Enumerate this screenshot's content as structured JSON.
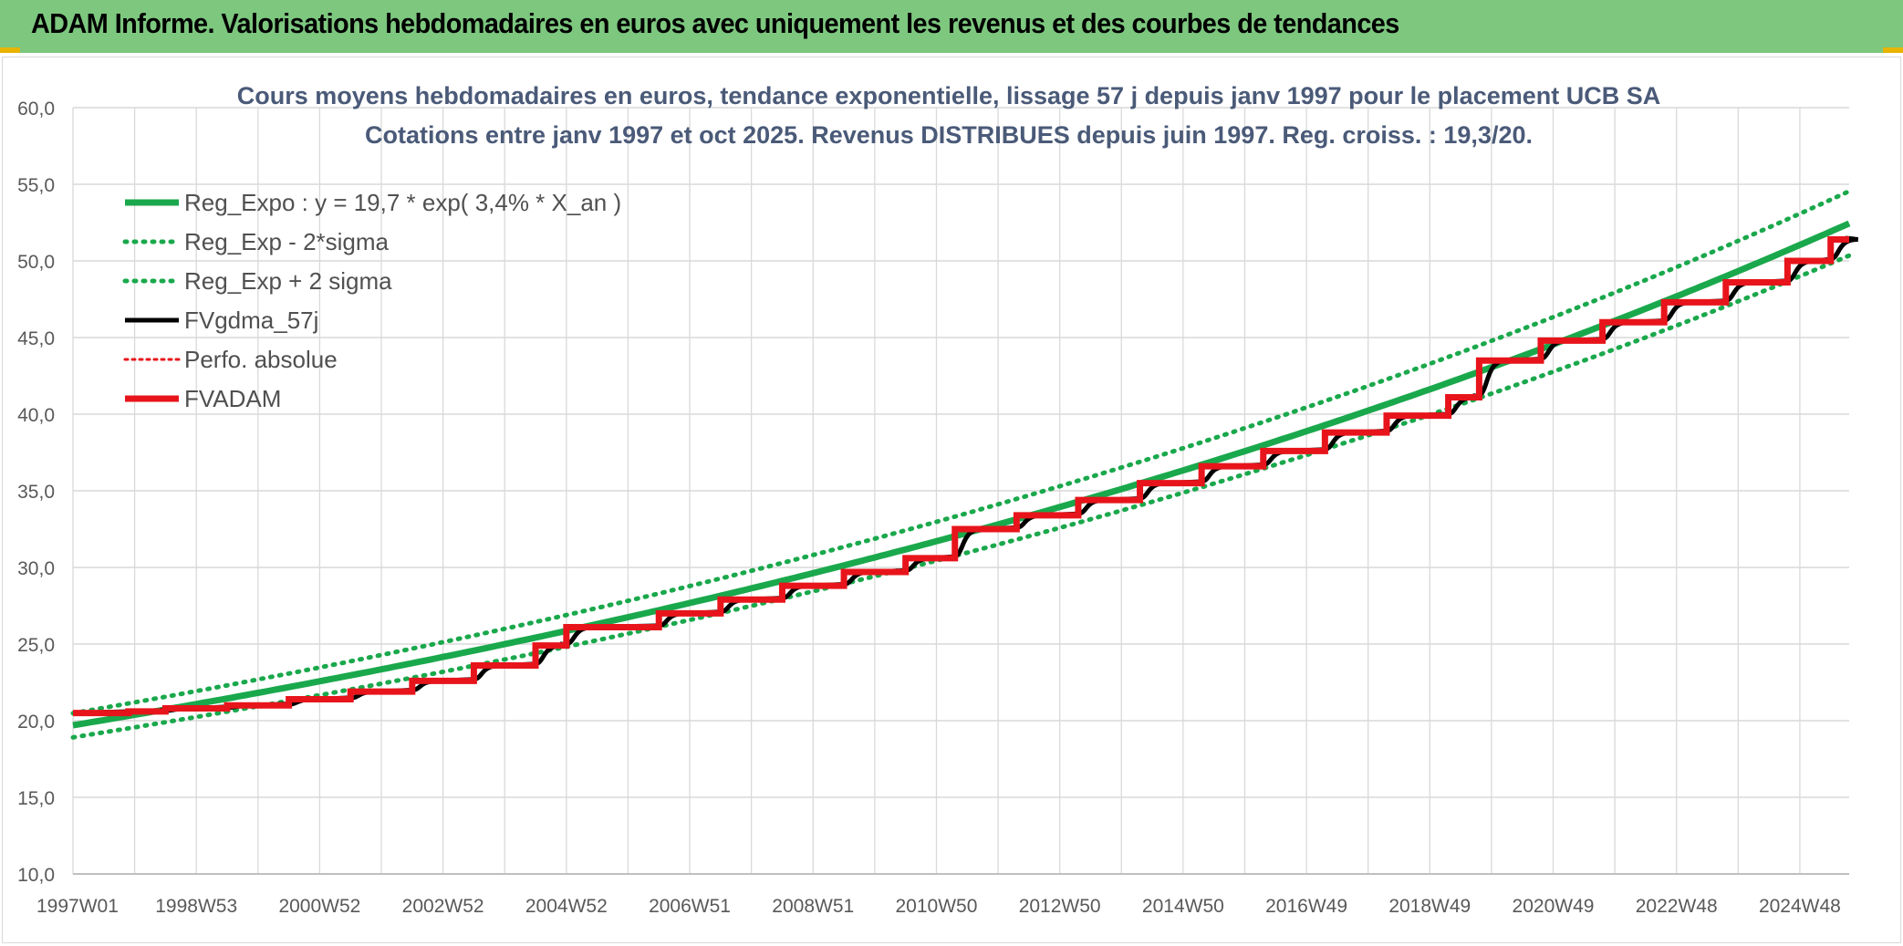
{
  "header": {
    "title": "ADAM Informe. Valorisations hebdomadaires en euros avec uniquement les revenus et des courbes de tendances"
  },
  "colors": {
    "header_bg": "#7dc77f",
    "trend": "#1aa84c",
    "price": "#000000",
    "adam": "#e8141b",
    "grid": "#d9d9d9"
  },
  "chart_data": {
    "type": "line",
    "title_line1": "Cours moyens hebdomadaires en euros, tendance exponentielle, lissage 57 j depuis janv 1997 pour le placement UCB SA",
    "title_line2": "Cotations entre janv 1997 et oct 2025. Revenus DISTRIBUES depuis juin 1997. Reg. croiss. : 19,3/20.",
    "xlabel": "",
    "ylabel": "",
    "ylim": [
      10,
      60
    ],
    "y_ticks": [
      "60,0",
      "55,0",
      "50,0",
      "45,0",
      "40,0",
      "35,0",
      "30,0",
      "25,0",
      "20,0",
      "15,0",
      "10,0"
    ],
    "x_range_years": [
      1997.0,
      2025.8
    ],
    "x_ticks": [
      {
        "label": "1997W01",
        "year": 1997.0
      },
      {
        "label": "1998W53",
        "year": 1999.0
      },
      {
        "label": "2000W52",
        "year": 2001.0
      },
      {
        "label": "2002W52",
        "year": 2003.0
      },
      {
        "label": "2004W52",
        "year": 2005.0
      },
      {
        "label": "2006W51",
        "year": 2007.0
      },
      {
        "label": "2008W51",
        "year": 2009.0
      },
      {
        "label": "2010W50",
        "year": 2011.0
      },
      {
        "label": "2012W50",
        "year": 2013.0
      },
      {
        "label": "2014W50",
        "year": 2015.0
      },
      {
        "label": "2016W49",
        "year": 2017.0
      },
      {
        "label": "2018W49",
        "year": 2019.0
      },
      {
        "label": "2020W49",
        "year": 2021.0
      },
      {
        "label": "2022W48",
        "year": 2023.0
      },
      {
        "label": "2024W48",
        "year": 2025.0
      }
    ],
    "grid": true,
    "legend_position": "top-left",
    "regression": {
      "a": 19.7,
      "rate": 0.034,
      "sigma_factor": 0.04
    },
    "series": [
      {
        "name": "Reg_Expo : y = 19,7 * exp( 3,4% *  X_an )",
        "style": "solid-thick",
        "color": "#1aa84c"
      },
      {
        "name": "Reg_Exp - 2*sigma",
        "style": "dotted",
        "color": "#1aa84c"
      },
      {
        "name": "Reg_Exp + 2 sigma",
        "style": "dotted",
        "color": "#1aa84c"
      },
      {
        "name": "FVgdma_57j",
        "style": "solid",
        "color": "#000000"
      },
      {
        "name": "Perfo. absolue",
        "style": "dotted-thin",
        "color": "#e8141b"
      },
      {
        "name": "FVADAM",
        "style": "solid-thick",
        "color": "#e8141b"
      }
    ],
    "fvadam_steps": [
      {
        "year": 1997.0,
        "value": 20.5
      },
      {
        "year": 1997.9,
        "value": 20.6
      },
      {
        "year": 1998.5,
        "value": 20.8
      },
      {
        "year": 1999.5,
        "value": 21.0
      },
      {
        "year": 2000.5,
        "value": 21.4
      },
      {
        "year": 2001.5,
        "value": 21.9
      },
      {
        "year": 2002.5,
        "value": 22.6
      },
      {
        "year": 2003.5,
        "value": 23.6
      },
      {
        "year": 2004.5,
        "value": 24.9
      },
      {
        "year": 2005.0,
        "value": 26.1
      },
      {
        "year": 2006.5,
        "value": 27.0
      },
      {
        "year": 2007.5,
        "value": 27.9
      },
      {
        "year": 2008.5,
        "value": 28.8
      },
      {
        "year": 2009.5,
        "value": 29.7
      },
      {
        "year": 2010.5,
        "value": 30.6
      },
      {
        "year": 2011.3,
        "value": 32.5
      },
      {
        "year": 2012.3,
        "value": 33.4
      },
      {
        "year": 2013.3,
        "value": 34.4
      },
      {
        "year": 2014.3,
        "value": 35.5
      },
      {
        "year": 2015.3,
        "value": 36.6
      },
      {
        "year": 2016.3,
        "value": 37.6
      },
      {
        "year": 2017.3,
        "value": 38.8
      },
      {
        "year": 2018.3,
        "value": 39.9
      },
      {
        "year": 2019.3,
        "value": 41.1
      },
      {
        "year": 2019.8,
        "value": 43.5
      },
      {
        "year": 2020.8,
        "value": 44.8
      },
      {
        "year": 2021.8,
        "value": 46.0
      },
      {
        "year": 2022.8,
        "value": 47.3
      },
      {
        "year": 2023.8,
        "value": 48.6
      },
      {
        "year": 2024.8,
        "value": 50.0
      },
      {
        "year": 2025.5,
        "value": 51.4
      }
    ]
  }
}
